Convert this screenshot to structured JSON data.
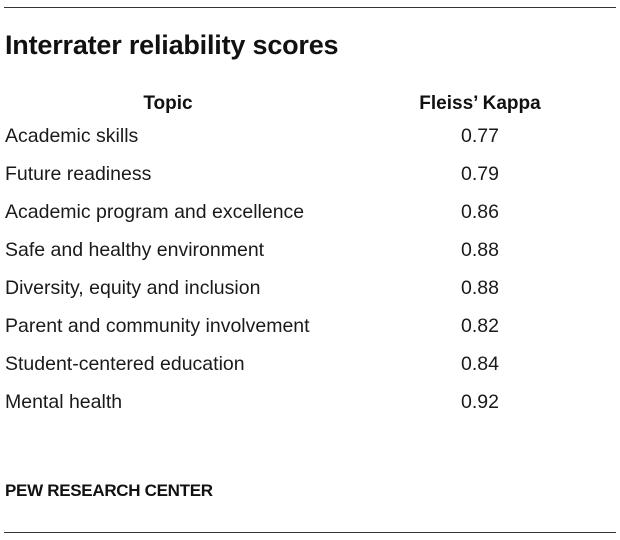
{
  "title": "Interrater reliability scores",
  "source": "PEW RESEARCH CENTER",
  "chart_data": {
    "type": "table",
    "title": "Interrater reliability scores",
    "columns": [
      "Topic",
      "Fleiss’ Kappa"
    ],
    "rows": [
      {
        "topic": "Academic skills",
        "kappa": "0.77"
      },
      {
        "topic": "Future readiness",
        "kappa": "0.79"
      },
      {
        "topic": "Academic program and excellence",
        "kappa": "0.86"
      },
      {
        "topic": "Safe and healthy environment",
        "kappa": "0.88"
      },
      {
        "topic": "Diversity, equity and inclusion",
        "kappa": "0.88"
      },
      {
        "topic": "Parent and community involvement",
        "kappa": "0.82"
      },
      {
        "topic": "Student-centered education",
        "kappa": "0.84"
      },
      {
        "topic": "Mental health",
        "kappa": "0.92"
      }
    ]
  }
}
